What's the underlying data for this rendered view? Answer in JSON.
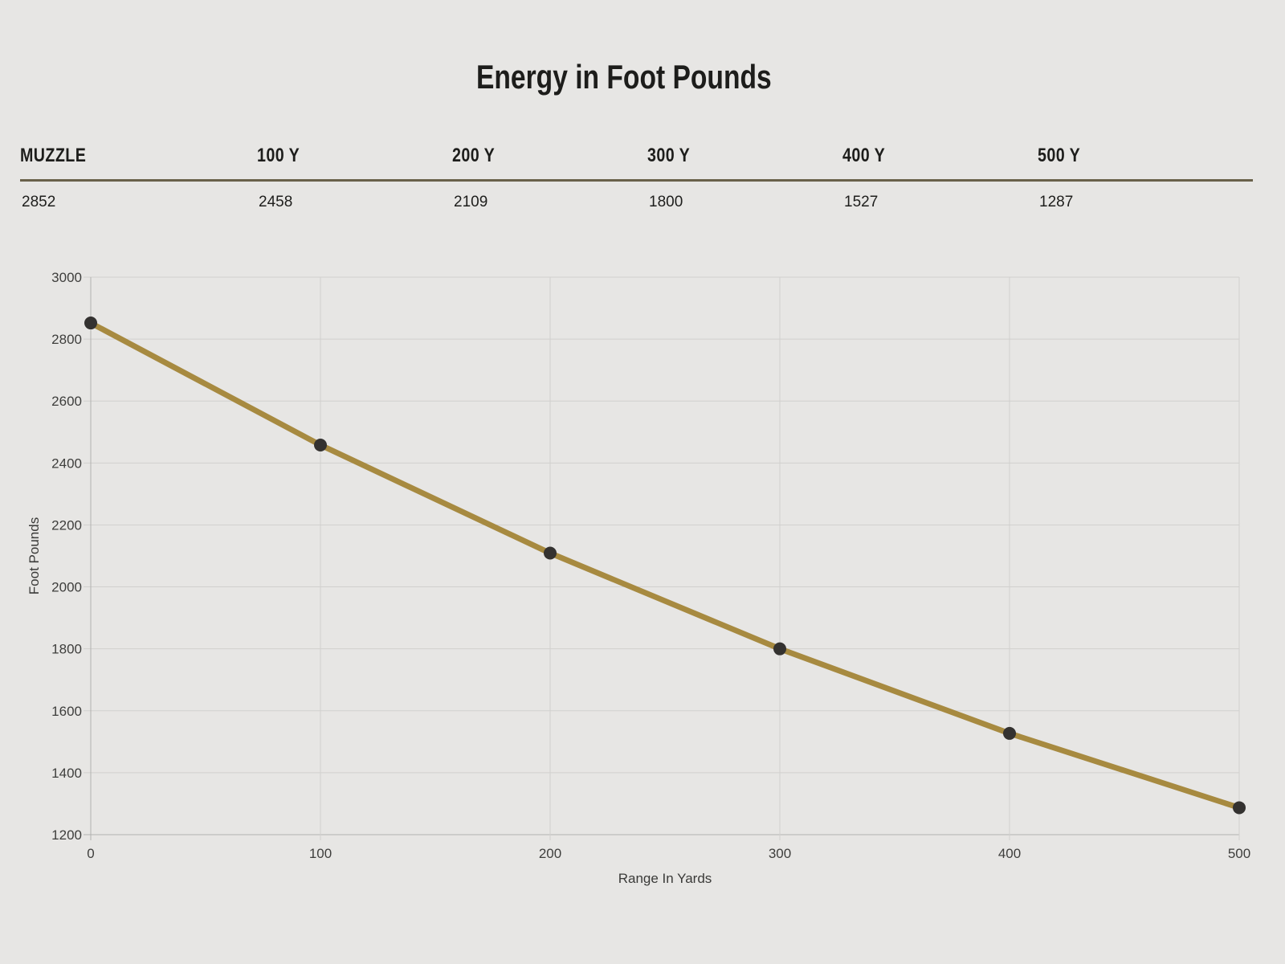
{
  "title": "Energy in Foot Pounds",
  "colors": {
    "background": "#e7e6e4",
    "header_underline": "#69614a",
    "heading_text": "#1d1d1b",
    "grid_line": "#d1d0ce",
    "axis_line": "#b2b1af"
  },
  "table": {
    "columns": [
      {
        "header": "MUZZLE",
        "value": "2852"
      },
      {
        "header": "100 Y",
        "value": "2458"
      },
      {
        "header": "200 Y",
        "value": "2109"
      },
      {
        "header": "300 Y",
        "value": "1800"
      },
      {
        "header": "400 Y",
        "value": "1527"
      },
      {
        "header": "500 Y",
        "value": "1287"
      }
    ]
  },
  "chart_data": {
    "type": "line",
    "title": "Energy in Foot Pounds",
    "x": [
      0,
      100,
      200,
      300,
      400,
      500
    ],
    "values": [
      2852,
      2458,
      2109,
      1800,
      1527,
      1287
    ],
    "xlabel": "Range In Yards",
    "ylabel": "Foot Pounds",
    "xlim": [
      0,
      500
    ],
    "ylim": [
      1200,
      3000
    ],
    "x_ticks": [
      0,
      100,
      200,
      300,
      400,
      500
    ],
    "y_ticks": [
      1200,
      1400,
      1600,
      1800,
      2000,
      2200,
      2400,
      2600,
      2800,
      3000
    ],
    "grid": true,
    "legend": "none",
    "line_color": "#a78a40",
    "marker_color": "#343230",
    "marker_radius": 8,
    "line_width": 7
  }
}
